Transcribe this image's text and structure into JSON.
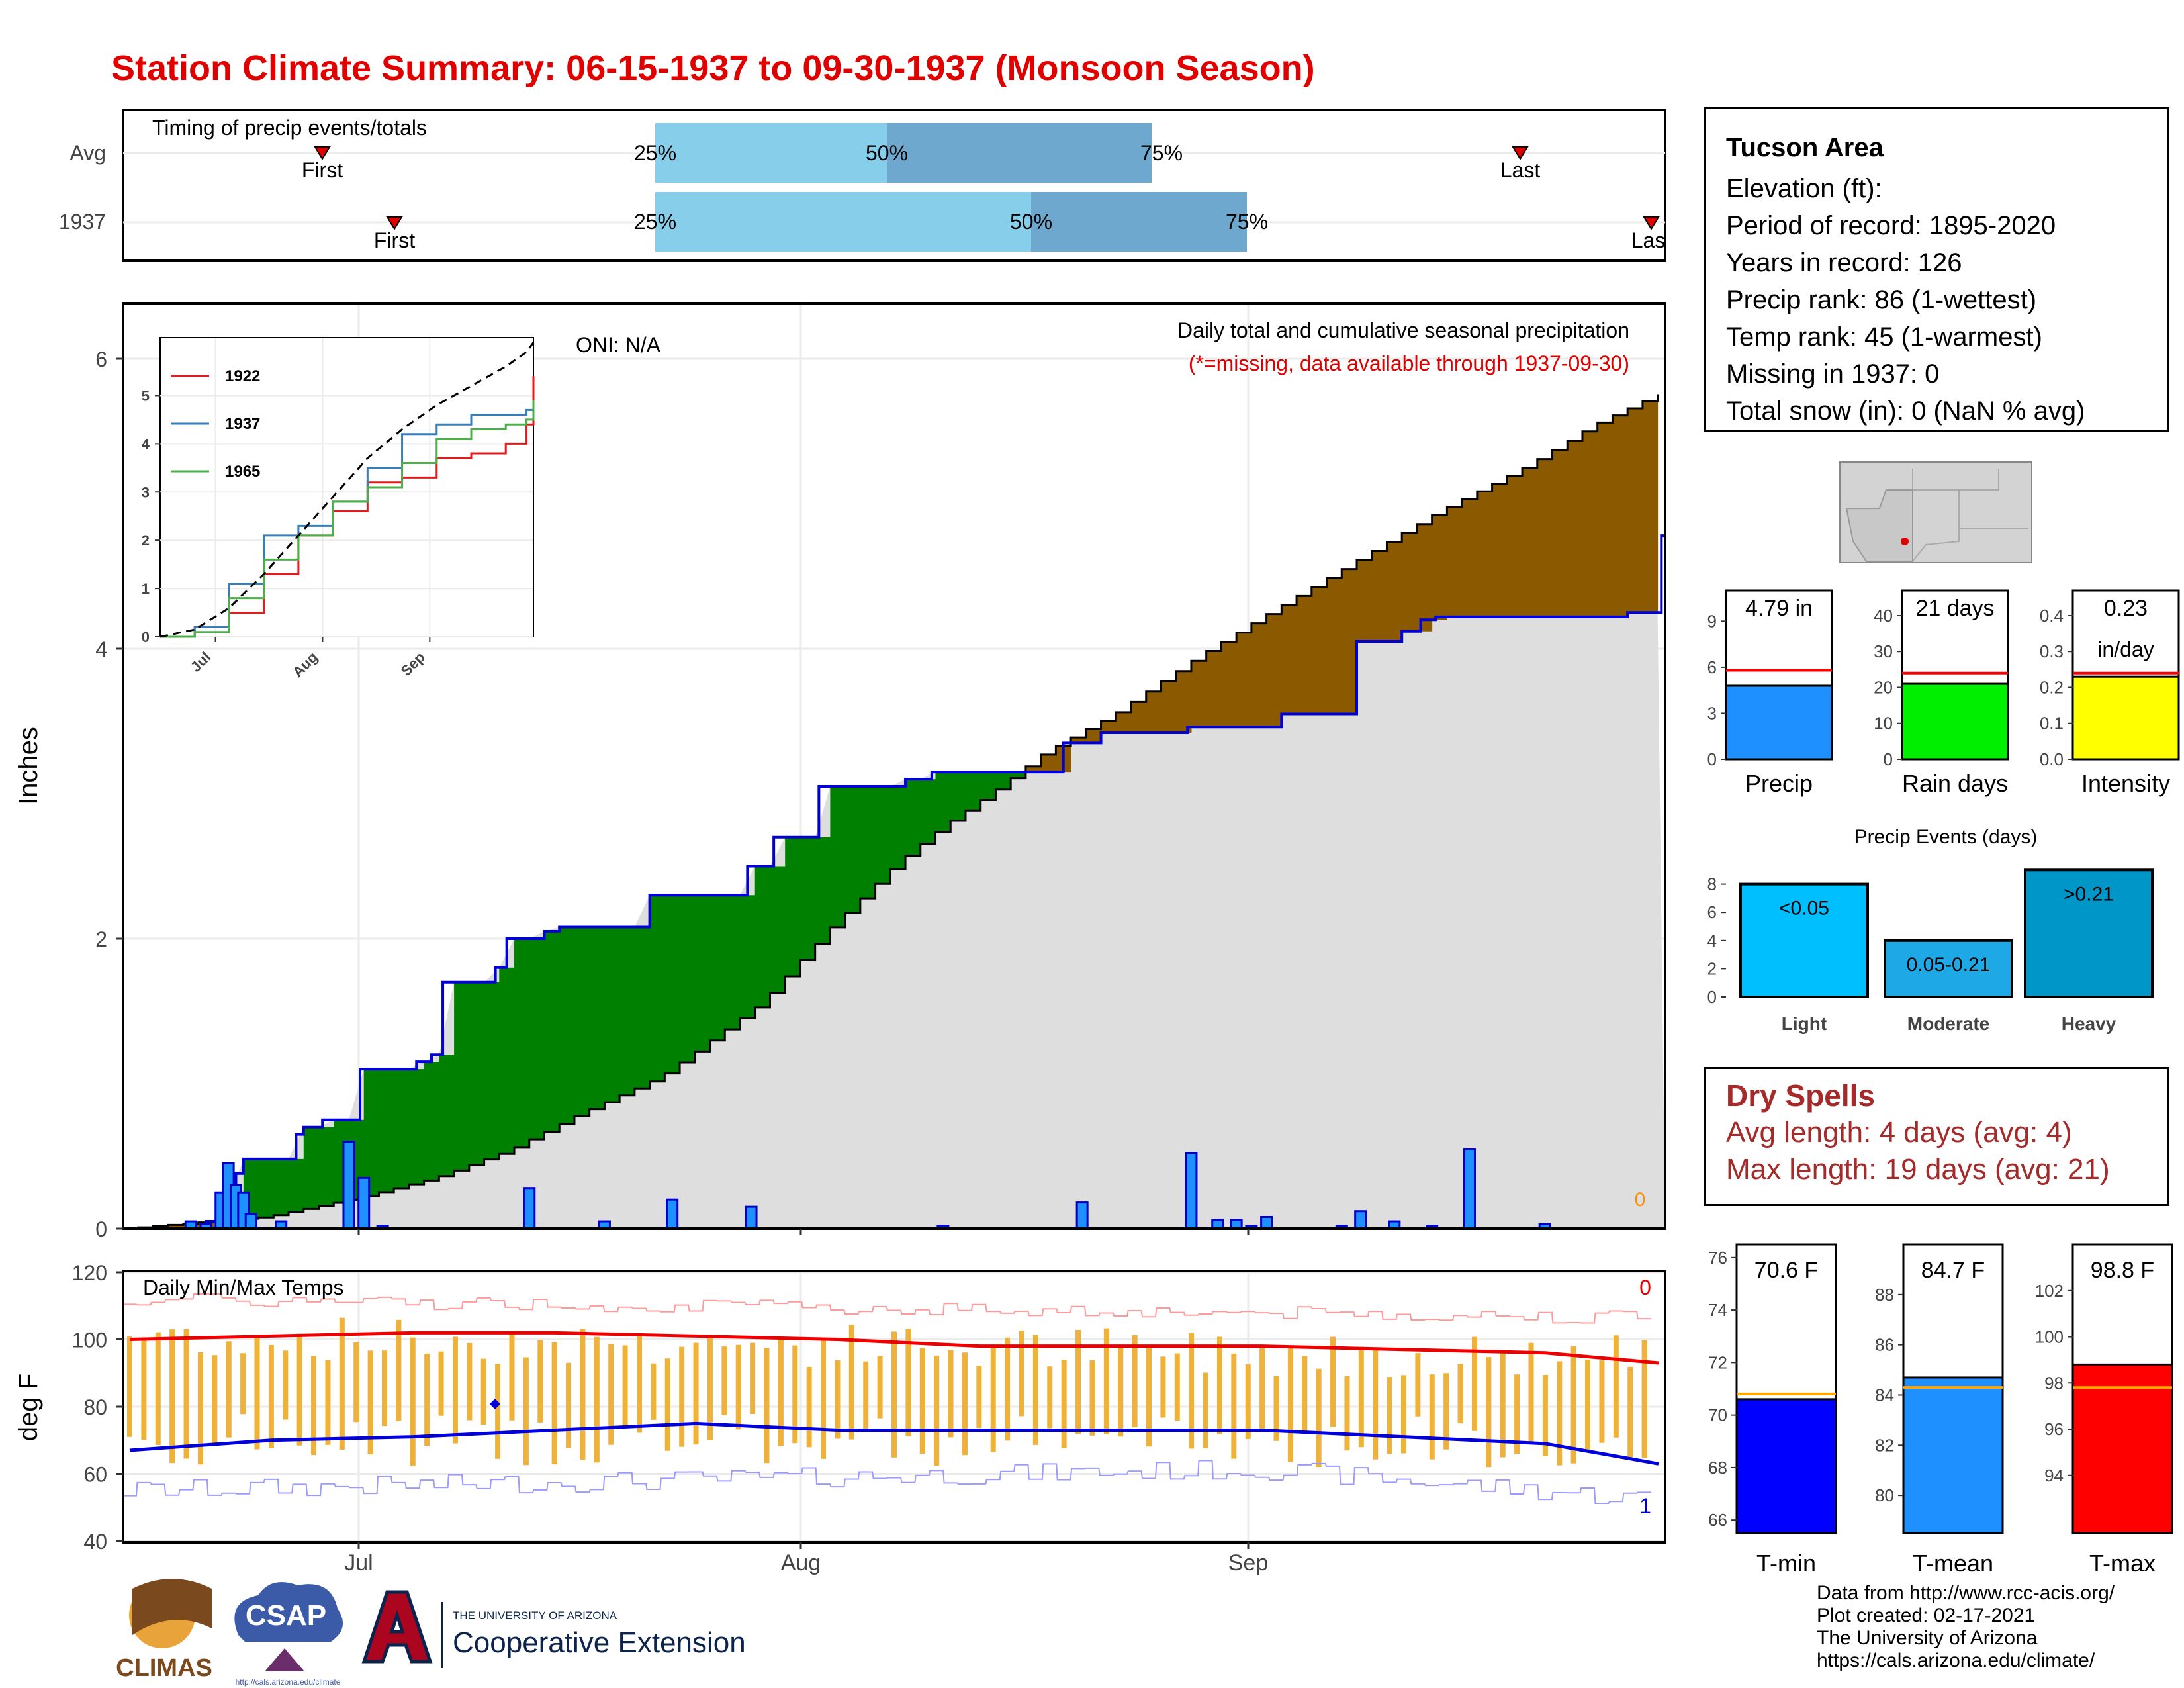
{
  "title": "Station Climate Summary: 06-15-1937 to 09-30-1937 (Monsoon Season)",
  "timing_panel": {
    "title": "Timing of precip events/totals",
    "rows": [
      {
        "label": "Avg",
        "first": "First",
        "last": "Last",
        "p25": "25%",
        "p50": "50%",
        "p75": "75%"
      },
      {
        "label": "1937",
        "first": "First",
        "last": "Last",
        "p25": "25%",
        "p50": "50%",
        "p75": "75%"
      }
    ]
  },
  "precip_panel": {
    "ylabel": "Inches",
    "oni": "ONI: N/A",
    "note1": "Daily total and cumulative seasonal precipitation",
    "note2": "(*=missing, data available through 1937-09-30)",
    "missing_marker": "0",
    "yticks": [
      "0",
      "2",
      "4",
      "6"
    ],
    "month_labels": [
      "Jul",
      "Aug",
      "Sep"
    ]
  },
  "inset": {
    "legend": [
      {
        "name": "1922",
        "color": "#e41a1c"
      },
      {
        "name": "1937",
        "color": "#377eb8"
      },
      {
        "name": "1965",
        "color": "#4daf4a"
      }
    ],
    "yticks": [
      "0",
      "1",
      "2",
      "3",
      "4",
      "5"
    ],
    "xticks": [
      "Jul",
      "Aug",
      "Sep"
    ]
  },
  "temp_panel": {
    "title": "Daily Min/Max Temps",
    "ylabel": "deg F",
    "yticks": [
      "40",
      "60",
      "80",
      "100",
      "120"
    ],
    "count_max": "0",
    "count_min": "1"
  },
  "info": {
    "station": "Tucson Area",
    "lines": [
      "Elevation (ft):",
      "Period of record: 1895-2020",
      "Years in record: 126",
      "Precip rank: 86 (1-wettest)",
      "Temp rank: 45 (1-warmest)",
      "Missing in 1937: 0",
      "Total snow (in): 0 (NaN % avg)"
    ]
  },
  "mini_bars": [
    {
      "label": "Precip",
      "value_text": "4.79 in",
      "value": 4.79,
      "avg": 5.8,
      "ymax": 11,
      "ticks": [
        "0",
        "3",
        "6",
        "9"
      ],
      "color": "#1e90ff"
    },
    {
      "label": "Rain days",
      "value_text": "21 days",
      "value": 21,
      "avg": 24,
      "ymax": 47,
      "ticks": [
        "0",
        "10",
        "20",
        "30",
        "40"
      ],
      "color": "#00ee00"
    },
    {
      "label": "Intensity",
      "value_text": "0.23",
      "value_text2": "in/day",
      "value": 0.23,
      "avg": 0.24,
      "ymax": 0.47,
      "ticks": [
        "0.0",
        "0.1",
        "0.2",
        "0.3",
        "0.4"
      ],
      "color": "#ffff00"
    }
  ],
  "events": {
    "title": "Precip Events (days)",
    "categories": [
      "Light",
      "Moderate",
      "Heavy"
    ],
    "labels": [
      "<0.05",
      "0.05-0.21",
      ">0.21"
    ],
    "values": [
      8,
      4,
      9
    ],
    "colors": [
      "#00bfff",
      "#1ea8e6",
      "#0096c8"
    ],
    "yticks": [
      "0",
      "2",
      "4",
      "6",
      "8"
    ]
  },
  "dry_spells": {
    "title": "Dry Spells",
    "avg": "Avg length: 4 days (avg: 4)",
    "max": "Max length: 19 days (avg: 21)"
  },
  "temp_bars": [
    {
      "label": "T-min",
      "value_text": "70.6 F",
      "value": 70.6,
      "avg": 70.8,
      "range": [
        65.5,
        76.5
      ],
      "ticks": [
        "66",
        "68",
        "70",
        "72",
        "74",
        "76"
      ],
      "color": "#0000ff"
    },
    {
      "label": "T-mean",
      "value_text": "84.7 F",
      "value": 84.7,
      "avg": 84.3,
      "range": [
        78.5,
        90.0
      ],
      "ticks": [
        "80",
        "82",
        "84",
        "86",
        "88"
      ],
      "color": "#1e90ff"
    },
    {
      "label": "T-max",
      "value_text": "98.8 F",
      "value": 98.8,
      "avg": 97.8,
      "range": [
        91.5,
        104.0
      ],
      "ticks": [
        "94",
        "96",
        "98",
        "100",
        "102"
      ],
      "color": "#ff0000"
    }
  ],
  "credits": [
    "Data from http://www.rcc-acis.org/",
    "Plot created: 02-17-2021",
    "The University of Arizona",
    "https://cals.arizona.edu/climate/"
  ],
  "logos": {
    "climas": "CLIMAS",
    "csap": "CSAP",
    "csap_url": "http://cals.arizona.edu/climate",
    "ua_small": "THE UNIVERSITY OF ARIZONA",
    "ua_big": "Cooperative Extension"
  },
  "chart_data": [
    {
      "type": "area",
      "title": "Daily total and cumulative seasonal precipitation",
      "ylabel": "Inches",
      "ylim": [
        0,
        6.4
      ],
      "x_range": [
        "1937-06-15",
        "1937-09-30"
      ],
      "series": [
        {
          "name": "Avg",
          "kind": "cumulative",
          "days": [
            0,
            10,
            16,
            22,
            27,
            32,
            38,
            45,
            50,
            55,
            58,
            62,
            65,
            70,
            76,
            81,
            87,
            93,
            99,
            104,
            109
          ],
          "values": [
            0,
            0.08,
            0.2,
            0.35,
            0.53,
            0.78,
            1.05,
            1.55,
            2.08,
            2.55,
            2.78,
            3.05,
            3.28,
            3.55,
            3.95,
            4.25,
            4.6,
            4.95,
            5.25,
            5.55,
            5.78
          ]
        },
        {
          "name": "1937",
          "kind": "cumulative",
          "days": [
            0,
            18,
            22,
            25,
            27,
            30,
            32,
            46,
            48,
            53,
            63,
            78,
            82,
            85,
            99,
            102,
            112,
            113,
            116,
            132,
            140,
            155,
            166,
            173,
            185,
            208,
            215,
            250,
            260,
            283,
            308,
            328,
            340,
            345,
            349,
            400,
            409,
            410
          ],
          "values": [
            0,
            0,
            0.05,
            0.1,
            0.2,
            0.38,
            0.48,
            0.65,
            0.7,
            0.75,
            1.1,
            1.15,
            1.2,
            1.7,
            1.8,
            2.0,
            2.05,
            2.05,
            2.08,
            2.08,
            2.3,
            2.3,
            2.5,
            2.7,
            3.05,
            3.1,
            3.15,
            3.35,
            3.42,
            3.46,
            3.55,
            4.05,
            4.12,
            4.2,
            4.22,
            4.25,
            4.78,
            4.79
          ]
        },
        {
          "name": "1937",
          "kind": "daily",
          "days": [
            18,
            22,
            26,
            28,
            30,
            32,
            34,
            42,
            60,
            64,
            69,
            108,
            128,
            146,
            167,
            218,
            255,
            284,
            291,
            296,
            300,
            304,
            324,
            329,
            338,
            348,
            358,
            378
          ],
          "values": [
            0.05,
            0.03,
            0.25,
            0.45,
            0.3,
            0.25,
            0.1,
            0.05,
            0.6,
            0.35,
            0.02,
            0.28,
            0.05,
            0.2,
            0.15,
            0.02,
            0.18,
            0.52,
            0.06,
            0.06,
            0.02,
            0.08,
            0.02,
            0.12,
            0.05,
            0.02,
            0.55,
            0.03
          ]
        }
      ]
    },
    {
      "type": "line",
      "title": "Daily Min/Max Temps",
      "ylabel": "deg F",
      "ylim": [
        40,
        120
      ],
      "x_range": [
        "1937-06-15",
        "1937-09-30"
      ],
      "series": [
        {
          "name": "Avg max",
          "days": [
            0,
            10,
            20,
            30,
            40,
            50,
            60,
            70,
            80,
            90,
            100,
            108
          ],
          "values": [
            100,
            101,
            102,
            102,
            101,
            100,
            98,
            98,
            98,
            97,
            96,
            93
          ]
        },
        {
          "name": "Avg min",
          "days": [
            0,
            10,
            20,
            30,
            40,
            50,
            60,
            70,
            80,
            90,
            100,
            108
          ],
          "values": [
            67,
            70,
            71,
            73,
            75,
            73,
            73,
            73,
            73,
            71,
            69,
            63
          ]
        }
      ]
    },
    {
      "type": "line",
      "title": "Cumulative precipitation, selected years",
      "ylim": [
        0,
        6.2
      ],
      "series": [
        {
          "name": "1922",
          "x": [
            0,
            10,
            20,
            30,
            40,
            50,
            60,
            70,
            80,
            90,
            100,
            106,
            108
          ],
          "y": [
            0,
            0.2,
            0.5,
            1.3,
            2.1,
            2.6,
            3.2,
            3.3,
            3.7,
            3.8,
            4.0,
            4.4,
            5.4
          ]
        },
        {
          "name": "1937",
          "x": [
            0,
            10,
            20,
            30,
            40,
            50,
            60,
            70,
            80,
            90,
            100,
            106,
            108
          ],
          "y": [
            0,
            0.2,
            1.1,
            2.1,
            2.3,
            2.8,
            3.5,
            4.2,
            4.4,
            4.6,
            4.6,
            4.7,
            4.8
          ]
        },
        {
          "name": "1965",
          "x": [
            0,
            10,
            20,
            30,
            40,
            50,
            60,
            70,
            80,
            90,
            100,
            106,
            108
          ],
          "y": [
            0,
            0.1,
            0.8,
            1.6,
            2.1,
            2.8,
            3.1,
            3.6,
            4.1,
            4.3,
            4.4,
            4.5,
            4.9
          ]
        },
        {
          "name": "Avg",
          "x": [
            0,
            10,
            20,
            30,
            40,
            50,
            60,
            70,
            80,
            90,
            100,
            106,
            108
          ],
          "y": [
            0,
            0.15,
            0.6,
            1.3,
            2.1,
            2.9,
            3.7,
            4.3,
            4.8,
            5.2,
            5.6,
            5.9,
            6.1
          ]
        }
      ]
    }
  ]
}
